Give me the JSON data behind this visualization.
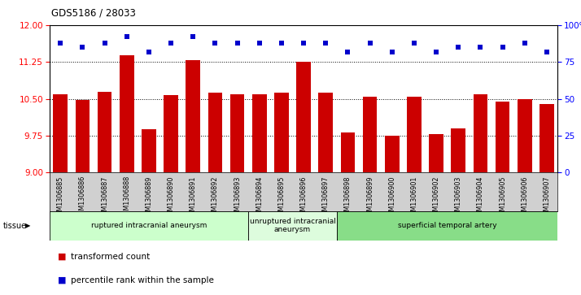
{
  "title": "GDS5186 / 28033",
  "samples": [
    "GSM1306885",
    "GSM1306886",
    "GSM1306887",
    "GSM1306888",
    "GSM1306889",
    "GSM1306890",
    "GSM1306891",
    "GSM1306892",
    "GSM1306893",
    "GSM1306894",
    "GSM1306895",
    "GSM1306896",
    "GSM1306897",
    "GSM1306898",
    "GSM1306899",
    "GSM1306900",
    "GSM1306901",
    "GSM1306902",
    "GSM1306903",
    "GSM1306904",
    "GSM1306905",
    "GSM1306906",
    "GSM1306907"
  ],
  "bar_values": [
    10.6,
    10.48,
    10.65,
    11.38,
    9.88,
    10.58,
    11.28,
    10.62,
    10.6,
    10.6,
    10.62,
    11.25,
    10.62,
    9.82,
    10.55,
    9.75,
    10.55,
    9.78,
    9.9,
    10.6,
    10.45,
    10.5,
    10.4
  ],
  "blue_values": [
    88,
    85,
    88,
    92,
    82,
    88,
    92,
    88,
    88,
    88,
    88,
    88,
    88,
    82,
    88,
    82,
    88,
    82,
    85,
    85,
    85,
    88,
    82
  ],
  "bar_color": "#cc0000",
  "dot_color": "#0000cc",
  "ymin": 9,
  "ymax": 12,
  "y2min": 0,
  "y2max": 100,
  "yticks": [
    9,
    9.75,
    10.5,
    11.25,
    12
  ],
  "y2ticks": [
    0,
    25,
    50,
    75,
    100
  ],
  "hlines": [
    9.75,
    10.5,
    11.25
  ],
  "groups": [
    {
      "label": "ruptured intracranial aneurysm",
      "start": 0,
      "end": 9,
      "color": "#ccffcc"
    },
    {
      "label": "unruptured intracranial\naneurysm",
      "start": 9,
      "end": 13,
      "color": "#ddfcdd"
    },
    {
      "label": "superficial temporal artery",
      "start": 13,
      "end": 23,
      "color": "#88dd88"
    }
  ],
  "legend_items": [
    {
      "label": "transformed count",
      "color": "#cc0000"
    },
    {
      "label": "percentile rank within the sample",
      "color": "#0000cc"
    }
  ],
  "tissue_label": "tissue",
  "xticklabel_bg": "#d0d0d0"
}
